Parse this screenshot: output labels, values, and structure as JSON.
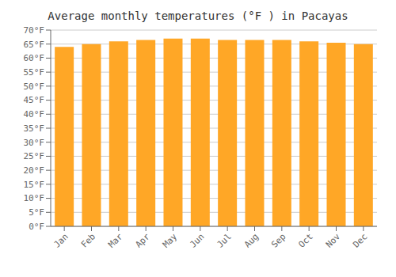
{
  "chart_data": {
    "type": "bar",
    "title": "Average monthly temperatures (°F ) in Pacayas",
    "categories": [
      "Jan",
      "Feb",
      "Mar",
      "Apr",
      "May",
      "Jun",
      "Jul",
      "Aug",
      "Sep",
      "Oct",
      "Nov",
      "Dec"
    ],
    "values": [
      64.0,
      65.0,
      66.0,
      66.5,
      67.0,
      67.0,
      66.5,
      66.5,
      66.5,
      66.0,
      65.5,
      65.0
    ],
    "color": "#FFA726",
    "ylim": [
      0,
      70
    ],
    "yticks": [
      {
        "value": 0,
        "label": "0°F"
      },
      {
        "value": 5,
        "label": "5°F"
      },
      {
        "value": 10,
        "label": "10°F"
      },
      {
        "value": 15,
        "label": "15°F"
      },
      {
        "value": 20,
        "label": "20°F"
      },
      {
        "value": 25,
        "label": "25°F"
      },
      {
        "value": 30,
        "label": "30°F"
      },
      {
        "value": 35,
        "label": "35°F"
      },
      {
        "value": 40,
        "label": "40°F"
      },
      {
        "value": 45,
        "label": "45°F"
      },
      {
        "value": 50,
        "label": "50°F"
      },
      {
        "value": 55,
        "label": "55°F"
      },
      {
        "value": 60,
        "label": "60°F"
      },
      {
        "value": 65,
        "label": "65°F"
      },
      {
        "value": 70,
        "label": "70°F"
      }
    ],
    "grid": true
  }
}
